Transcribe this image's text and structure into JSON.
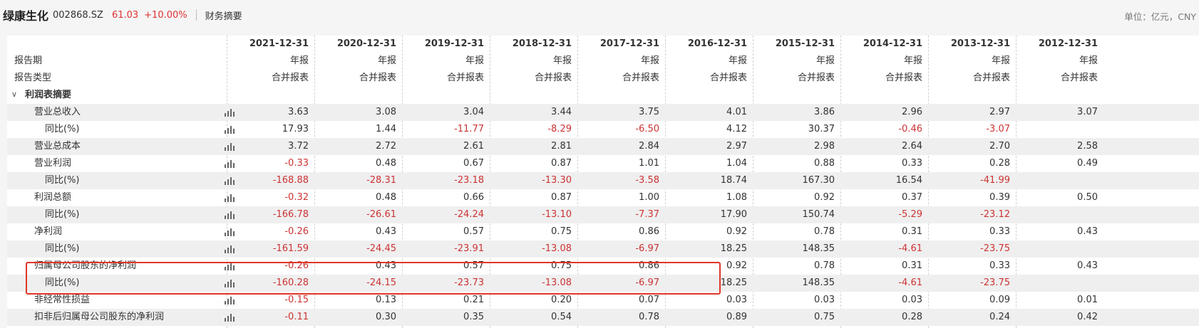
{
  "header": {
    "company": "绿康生化",
    "code": "002868.SZ",
    "price": "61.03",
    "change": "+10.00%",
    "tab": "财务摘要",
    "unit": "单位：亿元，CNY"
  },
  "labels": {
    "period": "报告期",
    "type": "报告类型"
  },
  "columns": [
    {
      "date": "2021-12-31",
      "period": "年报",
      "type": "合并报表"
    },
    {
      "date": "2020-12-31",
      "period": "年报",
      "type": "合并报表"
    },
    {
      "date": "2019-12-31",
      "period": "年报",
      "type": "合并报表"
    },
    {
      "date": "2018-12-31",
      "period": "年报",
      "type": "合并报表"
    },
    {
      "date": "2017-12-31",
      "period": "年报",
      "type": "合并报表"
    },
    {
      "date": "2016-12-31",
      "period": "年报",
      "type": "合并报表"
    },
    {
      "date": "2015-12-31",
      "period": "年报",
      "type": "合并报表"
    },
    {
      "date": "2014-12-31",
      "period": "年报",
      "type": "合并报表"
    },
    {
      "date": "2013-12-31",
      "period": "年报",
      "type": "合并报表"
    },
    {
      "date": "2012-12-31",
      "period": "年报",
      "type": "合并报表"
    }
  ],
  "section": {
    "label": "利润表摘要",
    "chevron_icon": "chevron-down-icon"
  },
  "rows": [
    {
      "label": "营业总收入",
      "indent": 1,
      "values": [
        "3.63",
        "3.08",
        "3.04",
        "3.44",
        "3.75",
        "4.01",
        "3.86",
        "2.96",
        "2.97",
        "3.07"
      ]
    },
    {
      "label": "同比(%)",
      "indent": 2,
      "values": [
        "17.93",
        "1.44",
        "-11.77",
        "-8.29",
        "-6.50",
        "4.12",
        "30.37",
        "-0.46",
        "-3.07",
        ""
      ]
    },
    {
      "label": "营业总成本",
      "indent": 1,
      "values": [
        "3.72",
        "2.72",
        "2.61",
        "2.81",
        "2.84",
        "2.97",
        "2.98",
        "2.64",
        "2.70",
        "2.58"
      ]
    },
    {
      "label": "营业利润",
      "indent": 1,
      "values": [
        "-0.33",
        "0.48",
        "0.67",
        "0.87",
        "1.01",
        "1.04",
        "0.88",
        "0.33",
        "0.28",
        "0.49"
      ]
    },
    {
      "label": "同比(%)",
      "indent": 2,
      "values": [
        "-168.88",
        "-28.31",
        "-23.18",
        "-13.30",
        "-3.58",
        "18.74",
        "167.30",
        "16.54",
        "-41.99",
        ""
      ]
    },
    {
      "label": "利润总额",
      "indent": 1,
      "values": [
        "-0.32",
        "0.48",
        "0.66",
        "0.87",
        "1.00",
        "1.08",
        "0.92",
        "0.37",
        "0.39",
        "0.50"
      ]
    },
    {
      "label": "同比(%)",
      "indent": 2,
      "values": [
        "-166.78",
        "-26.61",
        "-24.24",
        "-13.10",
        "-7.37",
        "17.90",
        "150.74",
        "-5.29",
        "-23.12",
        ""
      ]
    },
    {
      "label": "净利润",
      "indent": 1,
      "values": [
        "-0.26",
        "0.43",
        "0.57",
        "0.75",
        "0.86",
        "0.92",
        "0.78",
        "0.31",
        "0.33",
        "0.43"
      ]
    },
    {
      "label": "同比(%)",
      "indent": 2,
      "values": [
        "-161.59",
        "-24.45",
        "-23.91",
        "-13.08",
        "-6.97",
        "18.25",
        "148.35",
        "-4.61",
        "-23.75",
        ""
      ]
    },
    {
      "label": "归属母公司股东的净利润",
      "indent": 1,
      "values": [
        "-0.26",
        "0.43",
        "0.57",
        "0.75",
        "0.86",
        "0.92",
        "0.78",
        "0.31",
        "0.33",
        "0.43"
      ]
    },
    {
      "label": "同比(%)",
      "indent": 2,
      "values": [
        "-160.28",
        "-24.15",
        "-23.73",
        "-13.08",
        "-6.97",
        "18.25",
        "148.35",
        "-4.61",
        "-23.75",
        ""
      ]
    },
    {
      "label": "非经常性损益",
      "indent": 1,
      "values": [
        "-0.15",
        "0.13",
        "0.21",
        "0.20",
        "0.07",
        "0.03",
        "0.03",
        "0.03",
        "0.09",
        "0.01"
      ]
    },
    {
      "label": "扣非后归属母公司股东的净利润",
      "indent": 1,
      "values": [
        "-0.11",
        "0.30",
        "0.35",
        "0.54",
        "0.78",
        "0.89",
        "0.75",
        "0.28",
        "0.24",
        "0.42"
      ]
    }
  ],
  "colors": {
    "negative": "#cc3333",
    "highlight": "#e03528",
    "price": "#dd3333"
  },
  "icons": {
    "row_chart": "bar-chart-icon"
  }
}
